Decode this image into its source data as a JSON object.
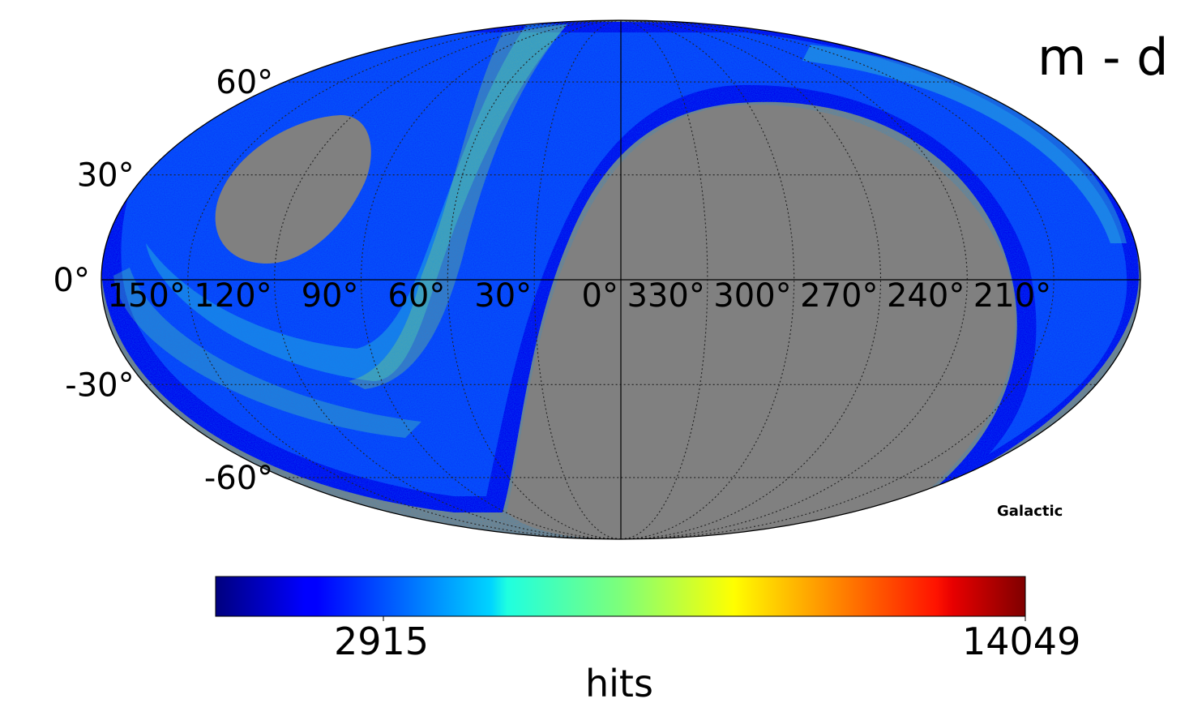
{
  "chart_data": {
    "type": "heatmap",
    "projection": "mollweide",
    "title": "m - d",
    "coordinate_system": "Galactic",
    "grid": true,
    "graticule_step_deg": 30,
    "longitude_tick_labels": [
      "150°",
      "120°",
      "90°",
      "60°",
      "30°",
      "0°",
      "330°",
      "300°",
      "270°",
      "240°",
      "210°"
    ],
    "latitude_tick_labels": [
      "60°",
      "30°",
      "0°",
      "-30°",
      "-60°"
    ],
    "colormap": "jet",
    "unseen_color": "#808080",
    "colorbar": {
      "label": "hits",
      "min": 2915,
      "max": 14049,
      "min_label": "2915",
      "max_label": "14049",
      "orientation": "horizontal"
    }
  }
}
